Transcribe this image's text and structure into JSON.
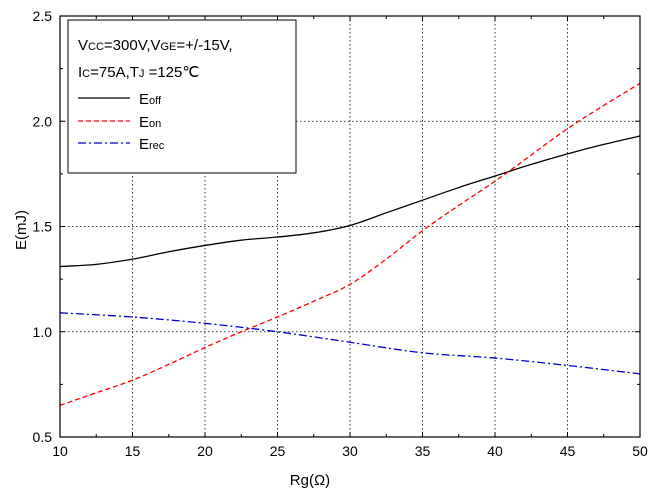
{
  "chart_data": {
    "type": "line",
    "xlabel": "Rg(Ω)",
    "ylabel": "E(mJ)",
    "xlim": [
      10,
      50
    ],
    "ylim": [
      0.5,
      2.5
    ],
    "x_ticks": [
      "10",
      "15",
      "20",
      "25",
      "30",
      "35",
      "40",
      "45",
      "50"
    ],
    "y_ticks": [
      "0.5",
      "1.0",
      "1.5",
      "2.0",
      "2.5"
    ],
    "grid": true,
    "legend_position": "top-left",
    "conditions": {
      "line1": {
        "v": "V",
        "cc": "CC",
        "eq1": "=300V,V",
        "ge": "GE",
        "eq2": "=+/-15V,"
      },
      "line2": {
        "i": "I",
        "c": "C",
        "eq1": "=75A,T",
        "j": "J",
        "eq2": " =125℃"
      }
    },
    "series": [
      {
        "name": "Eoff",
        "label_main": "E",
        "label_sub": "off",
        "color": "#000000",
        "dash": "solid",
        "x": [
          10,
          12.5,
          15,
          17.5,
          20,
          22.5,
          25,
          27.5,
          30,
          32.5,
          35,
          37.5,
          40,
          42.5,
          45,
          47.5,
          50
        ],
        "y": [
          1.31,
          1.32,
          1.345,
          1.38,
          1.41,
          1.435,
          1.45,
          1.47,
          1.505,
          1.565,
          1.625,
          1.685,
          1.74,
          1.795,
          1.845,
          1.89,
          1.93
        ]
      },
      {
        "name": "Eon",
        "label_main": "E",
        "label_sub": "on",
        "color": "#ff0000",
        "dash": "dashed",
        "x": [
          10,
          12.5,
          15,
          17.5,
          20,
          22.5,
          25,
          27.5,
          30,
          32.5,
          35,
          37.5,
          40,
          42.5,
          45,
          47.5,
          50
        ],
        "y": [
          0.65,
          0.71,
          0.77,
          0.845,
          0.925,
          1.0,
          1.07,
          1.145,
          1.225,
          1.345,
          1.48,
          1.6,
          1.715,
          1.84,
          1.965,
          2.075,
          2.18
        ]
      },
      {
        "name": "Erec",
        "label_main": "E",
        "label_sub": "rec",
        "color": "#0000cc",
        "dash": "dashdot",
        "x": [
          10,
          15,
          20,
          25,
          30,
          35,
          40,
          45,
          50
        ],
        "y": [
          1.09,
          1.07,
          1.04,
          1.0,
          0.95,
          0.9,
          0.875,
          0.84,
          0.8
        ]
      }
    ]
  }
}
